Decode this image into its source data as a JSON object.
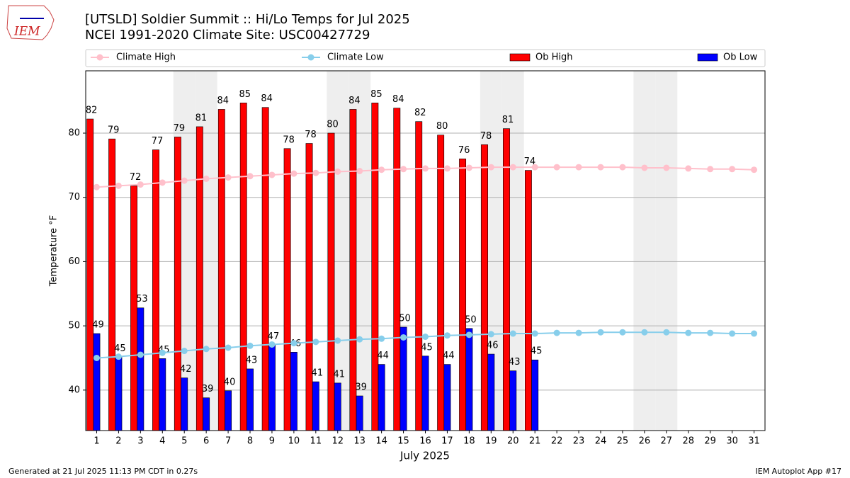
{
  "chart_data": {
    "type": "bar",
    "logo_text": "IEM",
    "title": "[UTSLD] Soldier Summit  :: Hi/Lo Temps for Jul 2025",
    "subtitle": "NCEI 1991-2020 Climate Site: USC00427729",
    "xlabel": "July 2025",
    "ylabel": "Temperature °F",
    "footer_left": "Generated at 21 Jul 2025 11:13 PM CDT in 0.27s",
    "footer_right": "IEM Autoplot App #17",
    "categories": [
      "1",
      "2",
      "3",
      "4",
      "5",
      "6",
      "7",
      "8",
      "9",
      "10",
      "11",
      "12",
      "13",
      "14",
      "15",
      "16",
      "17",
      "18",
      "19",
      "20",
      "21",
      "22",
      "23",
      "24",
      "25",
      "26",
      "27",
      "28",
      "29",
      "30",
      "31"
    ],
    "highlight_categories": [
      4,
      5,
      11,
      12,
      18,
      19,
      25,
      26
    ],
    "highlight_color": "#eeeeee",
    "ylim": [
      33.7,
      89.7
    ],
    "yticks": [
      40,
      50,
      60,
      70,
      80
    ],
    "grid": true,
    "legend": "top",
    "series": [
      {
        "name": "Climate High",
        "kind": "line",
        "color": "#ffc0cb",
        "values": [
          71.6,
          71.8,
          72.0,
          72.3,
          72.6,
          72.9,
          73.1,
          73.3,
          73.5,
          73.7,
          73.8,
          74.0,
          74.1,
          74.3,
          74.4,
          74.5,
          74.5,
          74.6,
          74.7,
          74.7,
          74.7,
          74.7,
          74.7,
          74.7,
          74.7,
          74.6,
          74.6,
          74.5,
          74.4,
          74.4,
          74.3
        ]
      },
      {
        "name": "Climate Low",
        "kind": "line",
        "color": "#87ceeb",
        "values": [
          45.0,
          45.2,
          45.5,
          45.8,
          46.1,
          46.4,
          46.6,
          46.9,
          47.1,
          47.3,
          47.5,
          47.7,
          47.9,
          48.0,
          48.2,
          48.3,
          48.5,
          48.6,
          48.7,
          48.8,
          48.8,
          48.9,
          48.9,
          49.0,
          49.0,
          49.0,
          49.0,
          48.9,
          48.9,
          48.8,
          48.8
        ]
      },
      {
        "name": "Ob High",
        "kind": "bar",
        "color": "#ff0000",
        "values": [
          82.2,
          79.1,
          71.8,
          77.4,
          79.4,
          81.0,
          83.7,
          84.7,
          84.0,
          77.6,
          78.4,
          80.0,
          83.7,
          84.7,
          83.9,
          81.8,
          79.7,
          76.0,
          78.2,
          80.7,
          74.2,
          null,
          null,
          null,
          null,
          null,
          null,
          null,
          null,
          null,
          null
        ],
        "value_labels": [
          "82",
          "79",
          "72",
          "77",
          "79",
          "81",
          "84",
          "85",
          "84",
          "78",
          "78",
          "80",
          "84",
          "85",
          "84",
          "82",
          "80",
          "76",
          "78",
          "81",
          "74",
          null,
          null,
          null,
          null,
          null,
          null,
          null,
          null,
          null,
          null
        ]
      },
      {
        "name": "Ob Low",
        "kind": "bar",
        "color": "#0000ff",
        "values": [
          48.8,
          45.1,
          52.8,
          44.9,
          41.9,
          38.8,
          39.9,
          43.3,
          47.0,
          45.9,
          41.3,
          41.1,
          39.1,
          44.0,
          49.8,
          45.3,
          44.0,
          49.6,
          45.6,
          43.0,
          44.7,
          null,
          null,
          null,
          null,
          null,
          null,
          null,
          null,
          null,
          null
        ],
        "value_labels": [
          "49",
          "45",
          "53",
          "45",
          "42",
          "39",
          "40",
          "43",
          "47",
          "46",
          "41",
          "41",
          "39",
          "44",
          "50",
          "45",
          "44",
          "50",
          "46",
          "43",
          "45",
          null,
          null,
          null,
          null,
          null,
          null,
          null,
          null,
          null,
          null
        ]
      }
    ]
  }
}
